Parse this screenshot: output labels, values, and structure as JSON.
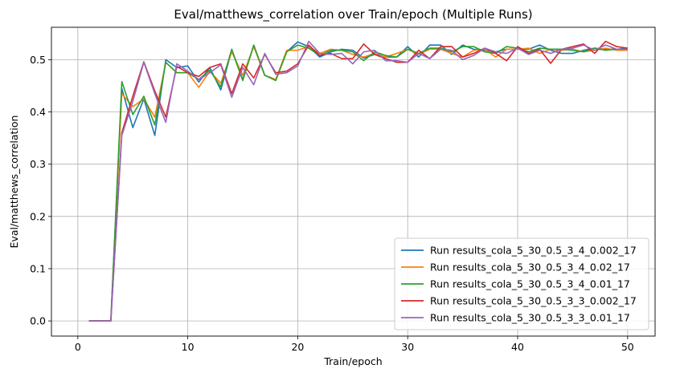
{
  "chart_data": {
    "type": "line",
    "title": "Eval/matthews_correlation over Train/epoch (Multiple Runs)",
    "xlabel": "Train/epoch",
    "ylabel": "Eval/matthews_correlation",
    "xlim": [
      -2.4,
      52.5
    ],
    "ylim": [
      -0.029,
      0.562
    ],
    "xticks": [
      0,
      10,
      20,
      30,
      40,
      50
    ],
    "yticks": [
      0.0,
      0.1,
      0.2,
      0.3,
      0.4,
      0.5
    ],
    "grid": true,
    "legend_position": "bottom-right",
    "x": [
      1,
      2,
      3,
      4,
      5,
      6,
      7,
      8,
      9,
      10,
      11,
      12,
      13,
      14,
      15,
      16,
      17,
      18,
      19,
      20,
      21,
      22,
      23,
      24,
      25,
      26,
      27,
      28,
      29,
      30,
      31,
      32,
      33,
      34,
      35,
      36,
      37,
      38,
      39,
      40,
      41,
      42,
      43,
      44,
      45,
      46,
      47,
      48,
      49,
      50
    ],
    "series": [
      {
        "name": "Run results_cola_5_30_0.5_3_4_0.002_17",
        "color": "#1f77b4",
        "values": [
          0,
          0,
          0,
          0.445,
          0.37,
          0.425,
          0.355,
          0.5,
          0.485,
          0.488,
          0.457,
          0.485,
          0.442,
          0.518,
          0.462,
          0.527,
          0.47,
          0.462,
          0.515,
          0.534,
          0.525,
          0.505,
          0.515,
          0.52,
          0.518,
          0.503,
          0.51,
          0.505,
          0.505,
          0.525,
          0.505,
          0.528,
          0.528,
          0.51,
          0.528,
          0.52,
          0.518,
          0.515,
          0.52,
          0.52,
          0.52,
          0.528,
          0.518,
          0.512,
          0.512,
          0.518,
          0.522,
          0.52,
          0.52,
          0.522
        ]
      },
      {
        "name": "Run results_cola_5_30_0.5_3_4_0.02_17",
        "color": "#ff7f0e",
        "values": [
          0,
          0,
          0,
          0.435,
          0.41,
          0.425,
          0.39,
          0.495,
          0.475,
          0.475,
          0.447,
          0.478,
          0.455,
          0.515,
          0.47,
          0.525,
          0.47,
          0.462,
          0.518,
          0.518,
          0.525,
          0.512,
          0.52,
          0.518,
          0.51,
          0.505,
          0.512,
          0.505,
          0.512,
          0.52,
          0.51,
          0.52,
          0.52,
          0.512,
          0.505,
          0.518,
          0.52,
          0.505,
          0.52,
          0.52,
          0.522,
          0.512,
          0.52,
          0.518,
          0.52,
          0.515,
          0.518,
          0.522,
          0.518,
          0.518
        ]
      },
      {
        "name": "Run results_cola_5_30_0.5_3_4_0.01_17",
        "color": "#2ca02c",
        "values": [
          0,
          0,
          0,
          0.458,
          0.395,
          0.43,
          0.375,
          0.495,
          0.475,
          0.475,
          0.462,
          0.48,
          0.448,
          0.52,
          0.46,
          0.528,
          0.47,
          0.46,
          0.515,
          0.528,
          0.522,
          0.508,
          0.518,
          0.518,
          0.515,
          0.498,
          0.515,
          0.508,
          0.505,
          0.52,
          0.512,
          0.522,
          0.522,
          0.515,
          0.525,
          0.525,
          0.515,
          0.512,
          0.525,
          0.522,
          0.515,
          0.522,
          0.52,
          0.52,
          0.518,
          0.515,
          0.522,
          0.518,
          0.52,
          0.52
        ]
      },
      {
        "name": "Run results_cola_5_30_0.5_3_3_0.002_17",
        "color": "#d62728",
        "values": [
          0,
          0,
          0,
          0.36,
          0.43,
          0.496,
          0.44,
          0.39,
          0.487,
          0.475,
          0.468,
          0.485,
          0.492,
          0.435,
          0.492,
          0.465,
          0.51,
          0.475,
          0.478,
          0.492,
          0.528,
          0.508,
          0.512,
          0.502,
          0.502,
          0.53,
          0.51,
          0.502,
          0.495,
          0.495,
          0.518,
          0.502,
          0.525,
          0.525,
          0.505,
          0.512,
          0.522,
          0.512,
          0.498,
          0.525,
          0.512,
          0.52,
          0.493,
          0.52,
          0.525,
          0.53,
          0.512,
          0.535,
          0.525,
          0.522
        ]
      },
      {
        "name": "Run results_cola_5_30_0.5_3_3_0.01_17",
        "color": "#9467bd",
        "values": [
          0,
          0,
          0,
          0.355,
          0.42,
          0.495,
          0.435,
          0.38,
          0.492,
          0.478,
          0.462,
          0.475,
          0.49,
          0.428,
          0.485,
          0.452,
          0.512,
          0.472,
          0.475,
          0.488,
          0.535,
          0.512,
          0.51,
          0.512,
          0.492,
          0.515,
          0.518,
          0.498,
          0.498,
          0.495,
          0.512,
          0.502,
          0.52,
          0.518,
          0.5,
          0.508,
          0.522,
          0.515,
          0.512,
          0.522,
          0.51,
          0.518,
          0.512,
          0.52,
          0.522,
          0.528,
          0.518,
          0.528,
          0.52,
          0.52
        ]
      }
    ]
  }
}
